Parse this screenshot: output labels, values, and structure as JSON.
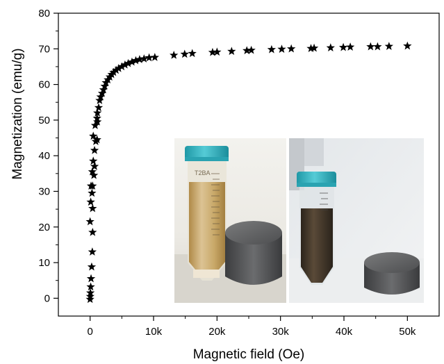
{
  "chart_data": {
    "type": "scatter",
    "title": "",
    "xlabel": "Magnetic field (Oe)",
    "ylabel": "Magnetization (emu/g)",
    "xlim": [
      -5000,
      55000
    ],
    "ylim": [
      -5,
      80
    ],
    "x_ticks": [
      0,
      10000,
      20000,
      30000,
      40000,
      50000
    ],
    "x_tick_labels": [
      "0",
      "10k",
      "20k",
      "30k",
      "40k",
      "50k"
    ],
    "y_ticks": [
      0,
      10,
      20,
      30,
      40,
      50,
      60,
      70,
      80
    ],
    "y_tick_labels": [
      "0",
      "10",
      "20",
      "30",
      "40",
      "50",
      "60",
      "70",
      "80"
    ],
    "grid": false,
    "legend": "none",
    "marker": "star",
    "marker_color": "#000000",
    "series": [
      {
        "points": [
          [
            0,
            -0.3
          ],
          [
            20,
            0.5
          ],
          [
            50,
            1.5
          ],
          [
            100,
            3.2
          ],
          [
            150,
            5.5
          ],
          [
            250,
            8.8
          ],
          [
            350,
            13
          ],
          [
            400,
            18.5
          ],
          [
            0,
            21.5
          ],
          [
            400,
            25.2
          ],
          [
            100,
            27
          ],
          [
            300,
            29.5
          ],
          [
            150,
            31.5
          ],
          [
            400,
            31.5
          ],
          [
            600,
            34.5
          ],
          [
            350,
            35.5
          ],
          [
            700,
            37
          ],
          [
            500,
            38.5
          ],
          [
            700,
            41.5
          ],
          [
            1100,
            44.5
          ],
          [
            900,
            44
          ],
          [
            500,
            45.5
          ],
          [
            800,
            48.5
          ],
          [
            1150,
            49.5
          ],
          [
            1100,
            50.5
          ],
          [
            1150,
            52
          ],
          [
            1350,
            53.5
          ],
          [
            1500,
            55.5
          ],
          [
            1650,
            56.5
          ],
          [
            1900,
            57.5
          ],
          [
            2100,
            58.5
          ],
          [
            2300,
            59.5
          ],
          [
            2500,
            60.5
          ],
          [
            2800,
            61.3
          ],
          [
            3100,
            62.1
          ],
          [
            3400,
            62.8
          ],
          [
            3700,
            63.4
          ],
          [
            4100,
            64
          ],
          [
            4500,
            64.5
          ],
          [
            5000,
            65
          ],
          [
            5500,
            65.5
          ],
          [
            6000,
            65.9
          ],
          [
            6600,
            66.3
          ],
          [
            7200,
            66.7
          ],
          [
            7800,
            67
          ],
          [
            8500,
            67.2
          ],
          [
            9300,
            67.5
          ],
          [
            10200,
            67.6
          ],
          [
            13200,
            68.2
          ],
          [
            14900,
            68.5
          ],
          [
            16100,
            68.7
          ],
          [
            19300,
            69
          ],
          [
            20000,
            69.1
          ],
          [
            22300,
            69.3
          ],
          [
            24700,
            69.5
          ],
          [
            25400,
            69.6
          ],
          [
            28600,
            69.8
          ],
          [
            30200,
            69.9
          ],
          [
            31700,
            70
          ],
          [
            34800,
            70.1
          ],
          [
            35300,
            70.2
          ],
          [
            37900,
            70.3
          ],
          [
            39900,
            70.4
          ],
          [
            41000,
            70.5
          ],
          [
            44200,
            70.6
          ],
          [
            45300,
            70.6
          ],
          [
            47100,
            70.7
          ],
          [
            50000,
            70.8
          ]
        ]
      }
    ],
    "inset": {
      "type": "photo",
      "subject": "two centrifuge tubes next to cylindrical magnets",
      "left_tube_liquid_color": "#c2a56c",
      "right_tube_liquid_color": "#3e3327",
      "cap_color": "#37b9c6",
      "tube_markings": "T2BA"
    }
  }
}
